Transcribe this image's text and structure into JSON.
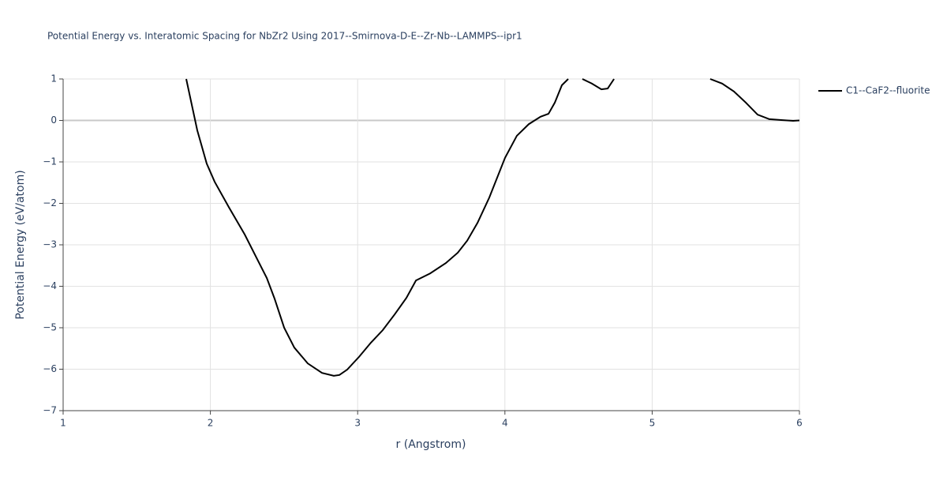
{
  "chart_data": {
    "type": "line",
    "title": "Potential Energy vs. Interatomic Spacing for NbZr2 Using 2017--Smirnova-D-E--Zr-Nb--LAMMPS--ipr1",
    "xlabel": "r (Angstrom)",
    "ylabel": "Potential Energy (eV/atom)",
    "xlim": [
      1,
      6
    ],
    "ylim": [
      -7,
      1
    ],
    "xticks": [
      1,
      2,
      3,
      4,
      5,
      6
    ],
    "yticks": [
      {
        "value": -7,
        "label": "−7"
      },
      {
        "value": -6,
        "label": "−6"
      },
      {
        "value": -5,
        "label": "−5"
      },
      {
        "value": -4,
        "label": "−4"
      },
      {
        "value": -3,
        "label": "−3"
      },
      {
        "value": -2,
        "label": "−2"
      },
      {
        "value": -1,
        "label": "−1"
      },
      0,
      1
    ],
    "grid": true,
    "legend": "right",
    "x": [
      1.836,
      1.911,
      1.975,
      2.029,
      2.125,
      2.233,
      2.35,
      2.383,
      2.436,
      2.501,
      2.57,
      2.661,
      2.758,
      2.838,
      2.876,
      2.929,
      3.01,
      3.09,
      3.17,
      3.251,
      3.331,
      3.396,
      3.492,
      3.599,
      3.68,
      3.744,
      3.814,
      3.894,
      4.001,
      4.081,
      4.162,
      4.242,
      4.296,
      4.339,
      4.387,
      4.43,
      4.48,
      4.526,
      4.59,
      4.655,
      4.698,
      4.741,
      5.1,
      5.394,
      5.475,
      5.555,
      5.636,
      5.716,
      5.796,
      5.877,
      5.957,
      6.0
    ],
    "series": [
      {
        "name": "C1--CaF2--fluorite",
        "color": "#000000",
        "values": [
          1.0,
          -0.24,
          -1.04,
          -1.48,
          -2.09,
          -2.75,
          -3.57,
          -3.8,
          -4.3,
          -5.0,
          -5.48,
          -5.86,
          -6.09,
          -6.16,
          -6.14,
          -6.01,
          -5.7,
          -5.36,
          -5.06,
          -4.68,
          -4.28,
          -3.86,
          -3.69,
          -3.44,
          -3.19,
          -2.9,
          -2.47,
          -1.86,
          -0.9,
          -0.37,
          -0.09,
          0.09,
          0.16,
          0.43,
          0.85,
          1.0,
          null,
          1.0,
          0.89,
          0.75,
          0.77,
          1.0,
          null,
          1.0,
          0.89,
          0.7,
          0.43,
          0.14,
          0.03,
          0.01,
          -0.01,
          0.0
        ]
      }
    ]
  }
}
